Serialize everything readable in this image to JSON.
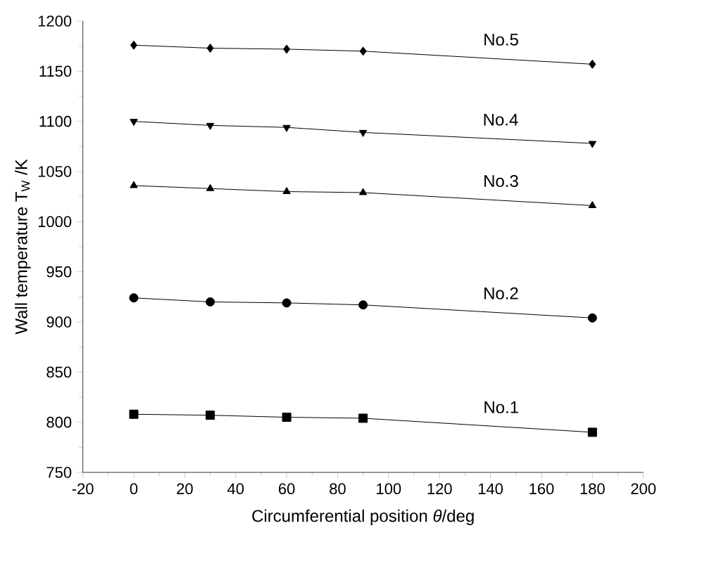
{
  "chart_data": {
    "type": "line",
    "xlabel": "Circumferential position *θ*/deg",
    "ylabel": "Wall temperature T$_{W}$ /K",
    "xlim": [
      -20,
      200
    ],
    "xticks": [
      -20,
      0,
      20,
      40,
      60,
      80,
      100,
      120,
      140,
      160,
      180,
      200
    ],
    "ylim": [
      750,
      1200
    ],
    "yticks": [
      750,
      800,
      850,
      900,
      950,
      1000,
      1050,
      1100,
      1150,
      1200
    ],
    "grid": false,
    "legend": false,
    "line_style": "solid",
    "x": [
      0,
      30,
      60,
      90,
      180
    ],
    "series": [
      {
        "name": "No.1",
        "color": "#000000",
        "marker": "square",
        "values": [
          808,
          807,
          805,
          804,
          790
        ]
      },
      {
        "name": "No.2",
        "color": "#000000",
        "marker": "circle",
        "values": [
          924,
          920,
          919,
          917,
          904
        ]
      },
      {
        "name": "No.3",
        "color": "#000000",
        "marker": "triangle",
        "values": [
          1036,
          1033,
          1030,
          1029,
          1016
        ]
      },
      {
        "name": "No.4",
        "color": "#000000",
        "marker": "triangle-down",
        "values": [
          1100,
          1096,
          1094,
          1089,
          1078
        ]
      },
      {
        "name": "No.5",
        "color": "#000000",
        "marker": "diamond",
        "values": [
          1176,
          1173,
          1172,
          1170,
          1157
        ]
      }
    ]
  }
}
